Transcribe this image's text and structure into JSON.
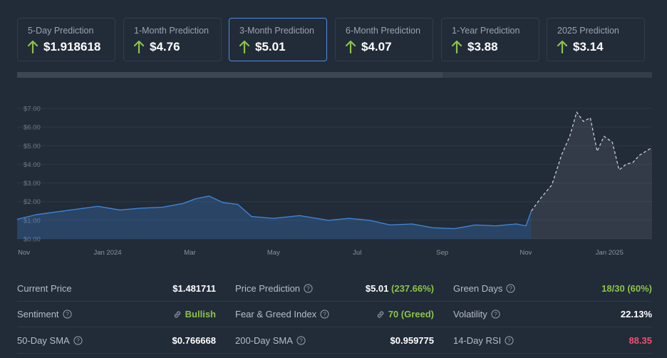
{
  "predictions": [
    {
      "label": "5-Day Prediction",
      "value": "$1.918618",
      "active": false
    },
    {
      "label": "1-Month Prediction",
      "value": "$4.76",
      "active": false
    },
    {
      "label": "3-Month Prediction",
      "value": "$5.01",
      "active": true
    },
    {
      "label": "6-Month Prediction",
      "value": "$4.07",
      "active": false
    },
    {
      "label": "1-Year Prediction",
      "value": "$3.88",
      "active": false
    },
    {
      "label": "2025 Prediction",
      "value": "$3.14",
      "active": false
    }
  ],
  "colors": {
    "accent": "#4c8fe6",
    "up": "#8bc34a",
    "down": "#f0506e",
    "history": "#3d84d6",
    "forecast": "#c8ccd2"
  },
  "progress": {
    "fraction": 0.67
  },
  "stats": {
    "current_price": {
      "label": "Current Price",
      "value": "$1.481711"
    },
    "price_prediction": {
      "label": "Price Prediction",
      "value": "$5.01",
      "change": "(237.66%)"
    },
    "green_days": {
      "label": "Green Days",
      "value": "18/30 (60%)"
    },
    "sentiment": {
      "label": "Sentiment",
      "value": "Bullish"
    },
    "fear_greed": {
      "label": "Fear & Greed Index",
      "value": "70 (Greed)"
    },
    "volatility": {
      "label": "Volatility",
      "value": "22.13%"
    },
    "sma50": {
      "label": "50-Day SMA",
      "value": "$0.766668"
    },
    "sma200": {
      "label": "200-Day SMA",
      "value": "$0.959775"
    },
    "rsi": {
      "label": "14-Day RSI",
      "value": "88.35"
    }
  },
  "chart_data": {
    "type": "line",
    "title": "",
    "xlabel": "",
    "ylabel": "",
    "ylim": [
      0,
      7
    ],
    "yticks": [
      "$0.00",
      "$1.00",
      "$2.00",
      "$3.00",
      "$4.00",
      "$5.00",
      "$6.00",
      "$7.00"
    ],
    "xticks": [
      "Nov",
      "Jan 2024",
      "Mar",
      "May",
      "Jul",
      "Sep",
      "Nov",
      "Jan 2025"
    ],
    "grid": true,
    "legend": "none",
    "series": [
      {
        "style": "solid-area",
        "x": [
          "2023-10-27",
          "2023-11-10",
          "2023-11-25",
          "2023-12-10",
          "2023-12-25",
          "2024-01-10",
          "2024-01-25",
          "2024-02-10",
          "2024-02-25",
          "2024-03-05",
          "2024-03-15",
          "2024-03-25",
          "2024-04-05",
          "2024-04-15",
          "2024-05-01",
          "2024-05-20",
          "2024-06-10",
          "2024-06-25",
          "2024-07-10",
          "2024-07-25",
          "2024-08-10",
          "2024-08-25",
          "2024-09-10",
          "2024-09-25",
          "2024-10-10",
          "2024-10-25",
          "2024-11-01",
          "2024-11-05"
        ],
        "y": [
          1.05,
          1.3,
          1.45,
          1.6,
          1.75,
          1.55,
          1.65,
          1.7,
          1.9,
          2.15,
          2.3,
          1.95,
          1.85,
          1.2,
          1.1,
          1.25,
          1.0,
          1.1,
          1.0,
          0.75,
          0.8,
          0.6,
          0.55,
          0.75,
          0.7,
          0.8,
          0.7,
          1.5
        ]
      },
      {
        "style": "dashed-area",
        "x": [
          "2024-11-05",
          "2024-11-12",
          "2024-11-20",
          "2024-11-27",
          "2024-12-03",
          "2024-12-08",
          "2024-12-13",
          "2024-12-18",
          "2024-12-23",
          "2024-12-28",
          "2025-01-03",
          "2025-01-08",
          "2025-01-13",
          "2025-01-18",
          "2025-01-23",
          "2025-02-01"
        ],
        "y": [
          1.5,
          2.2,
          2.9,
          4.5,
          5.5,
          6.8,
          6.3,
          6.5,
          4.7,
          5.5,
          5.2,
          3.7,
          4.0,
          4.1,
          4.5,
          4.9
        ]
      }
    ]
  }
}
